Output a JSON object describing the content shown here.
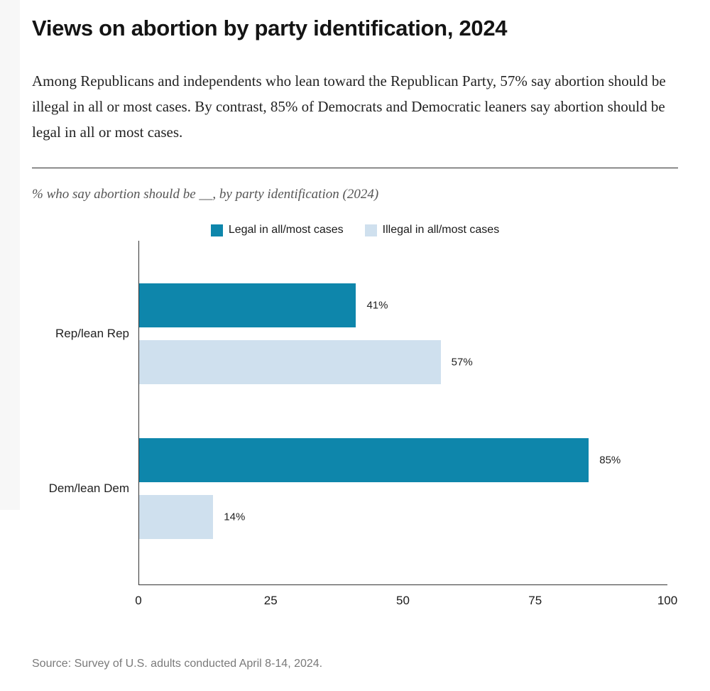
{
  "page": {
    "title": "Views on abortion by party identification, 2024",
    "subtitle": "Among Republicans and independents who lean toward the Republican Party, 57% say abortion should be illegal in all or most cases. By contrast, 85% of Democrats and Democratic leaners say abortion should be legal in all or most cases.",
    "note": "% who say abortion should be __, by party identification (2024)",
    "source": "Source: Survey of U.S. adults conducted April 8-14, 2024."
  },
  "chart_data": {
    "type": "bar",
    "orientation": "horizontal",
    "title": "% who say abortion should be __, by party identification (2024)",
    "categories": [
      "Rep/lean Rep",
      "Dem/lean Dem"
    ],
    "series": [
      {
        "name": "Legal in all/most cases",
        "color": "#0e86ab",
        "values": [
          41,
          85
        ]
      },
      {
        "name": "Illegal in all/most cases",
        "color": "#cfe0ee",
        "values": [
          57,
          14
        ]
      }
    ],
    "unit": "%",
    "xlim": [
      0,
      100
    ],
    "x_ticks": [
      0,
      25,
      50,
      75,
      100
    ],
    "value_labels": [
      "41%",
      "57%",
      "85%",
      "14%"
    ],
    "legend_position": "top",
    "grid": false
  },
  "colors": {
    "legal_bar": "#0e86ab",
    "illegal_bar": "#cfe0ee",
    "axis": "#333333",
    "divider": "#2b2b2b",
    "source_text": "#7a7a7a"
  }
}
